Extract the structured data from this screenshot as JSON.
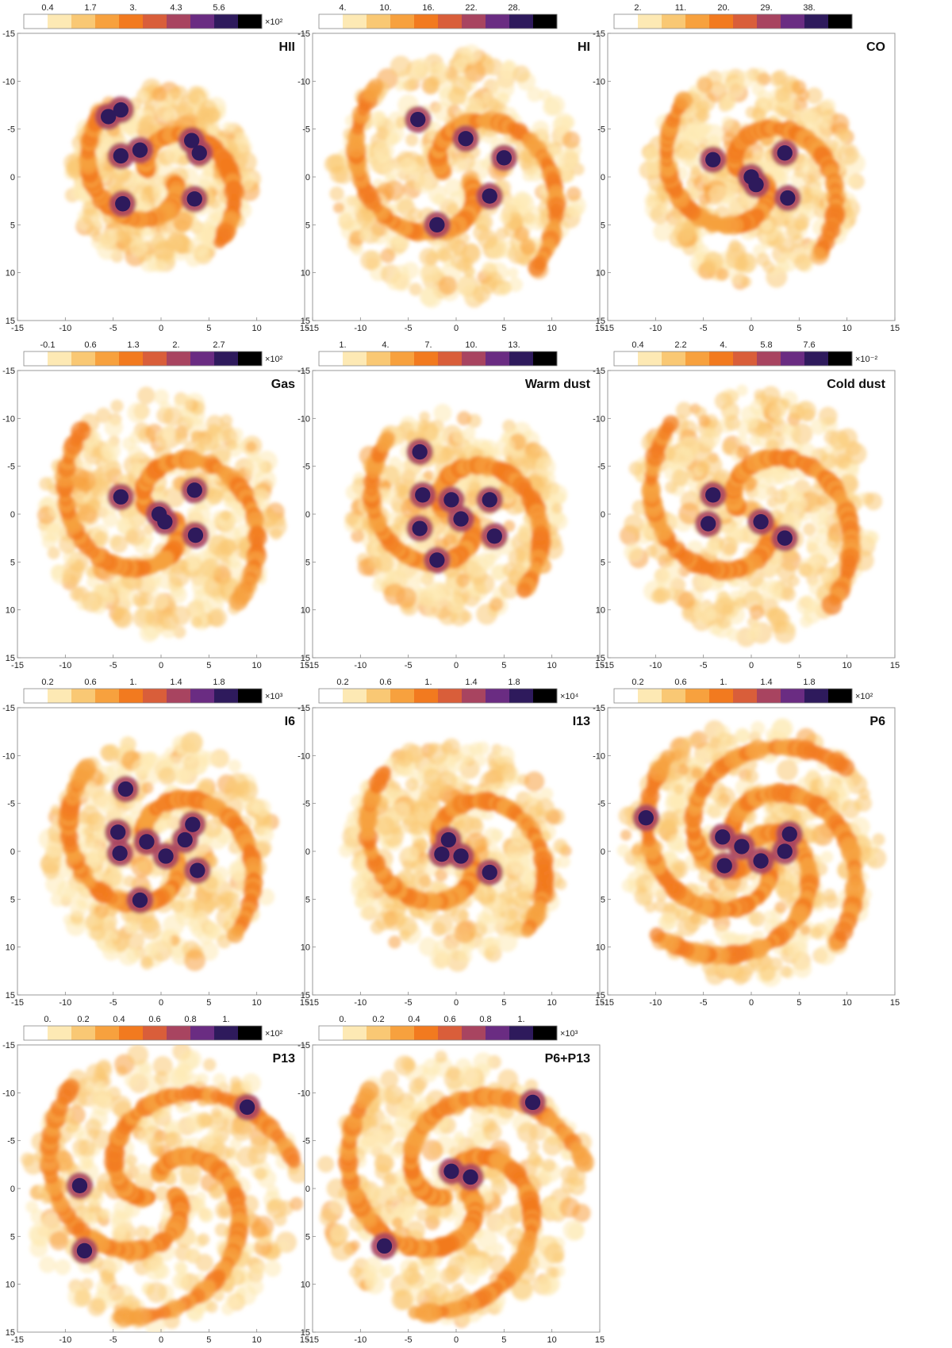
{
  "colors": {
    "colormap": [
      "#ffffff",
      "#fde9b4",
      "#f9c874",
      "#f7a13e",
      "#f27a1f",
      "#d95e3a",
      "#a84460",
      "#6a2c82",
      "#2e1a5c",
      "#000000"
    ],
    "frame": "#999999",
    "panel_bg": "#ffffff"
  },
  "axis_ticks": [
    "-15",
    "-10",
    "-5",
    "0",
    "5",
    "10",
    "15"
  ],
  "chart_data": [
    {
      "type": "heatmap",
      "title": "HII",
      "xlim": [
        -15,
        15
      ],
      "ylim": [
        -15,
        15
      ],
      "colorbar": {
        "ticks": [
          "0.4",
          "1.7",
          "3.",
          "4.3",
          "5.6"
        ],
        "multiplier": "×10²",
        "range": [
          0,
          6.5
        ]
      },
      "ring_radius": 9.5,
      "arms": 2,
      "blobs": [
        [
          -4.2,
          -2.2
        ],
        [
          -2.2,
          -2.8
        ],
        [
          3.2,
          -3.8
        ],
        [
          4.0,
          -2.5
        ],
        [
          3.5,
          2.3
        ],
        [
          -4,
          2.8
        ],
        [
          -5.5,
          -6.3
        ],
        [
          -4.2,
          -7
        ]
      ]
    },
    {
      "type": "heatmap",
      "title": "HI",
      "xlim": [
        -15,
        15
      ],
      "ylim": [
        -15,
        15
      ],
      "colorbar": {
        "ticks": [
          "4.",
          "10.",
          "16.",
          "22.",
          "28."
        ],
        "multiplier": "",
        "range": [
          0,
          30
        ]
      },
      "ring_radius": 13,
      "arms": 2,
      "blobs": [
        [
          -4,
          -6
        ],
        [
          1,
          -4
        ],
        [
          3.5,
          2
        ],
        [
          -2,
          5
        ],
        [
          5,
          -2
        ]
      ]
    },
    {
      "type": "heatmap",
      "title": "CO",
      "xlim": [
        -15,
        15
      ],
      "ylim": [
        -15,
        15
      ],
      "colorbar": {
        "ticks": [
          "2.",
          "11.",
          "20.",
          "29.",
          "38."
        ],
        "multiplier": "",
        "range": [
          0,
          42
        ]
      },
      "ring_radius": 11,
      "arms": 2,
      "blobs": [
        [
          -4.0,
          -1.8
        ],
        [
          0,
          0
        ],
        [
          0.5,
          0.8
        ],
        [
          3.8,
          2.2
        ],
        [
          3.5,
          -2.5
        ]
      ]
    },
    {
      "type": "heatmap",
      "title": "Gas",
      "xlim": [
        -15,
        15
      ],
      "ylim": [
        -15,
        15
      ],
      "colorbar": {
        "ticks": [
          "-0.1",
          "0.6",
          "1.3",
          "2.",
          "2.7"
        ],
        "multiplier": "×10²",
        "range": [
          -0.2,
          3.2
        ]
      },
      "ring_radius": 12.5,
      "arms": 2,
      "blobs": [
        [
          -4.2,
          -1.8
        ],
        [
          -0.2,
          0
        ],
        [
          0.4,
          0.8
        ],
        [
          3.6,
          2.2
        ],
        [
          3.5,
          -2.5
        ]
      ]
    },
    {
      "type": "heatmap",
      "title": "Warm dust",
      "xlim": [
        -15,
        15
      ],
      "ylim": [
        -15,
        15
      ],
      "colorbar": {
        "ticks": [
          "1.",
          "4.",
          "7.",
          "10.",
          "13."
        ],
        "multiplier": "",
        "range": [
          0,
          15
        ]
      },
      "ring_radius": 11,
      "arms": 2,
      "blobs": [
        [
          -3.5,
          -2
        ],
        [
          -0.5,
          -1.5
        ],
        [
          0.5,
          0.5
        ],
        [
          4.0,
          2.3
        ],
        [
          3.5,
          -1.5
        ],
        [
          -3.8,
          1.5
        ],
        [
          -3.8,
          -6.5
        ],
        [
          -2,
          4.8
        ]
      ]
    },
    {
      "type": "heatmap",
      "title": "Cold dust",
      "xlim": [
        -15,
        15
      ],
      "ylim": [
        -15,
        15
      ],
      "colorbar": {
        "ticks": [
          "0.4",
          "2.2",
          "4.",
          "5.8",
          "7.6"
        ],
        "multiplier": "×10⁻²",
        "range": [
          0,
          9
        ]
      },
      "ring_radius": 13,
      "arms": 2,
      "blobs": [
        [
          -4,
          -2
        ],
        [
          1,
          0.8
        ],
        [
          3.5,
          2.5
        ],
        [
          -4.5,
          1
        ]
      ]
    },
    {
      "type": "heatmap",
      "title": "I6",
      "xlim": [
        -15,
        15
      ],
      "ylim": [
        -15,
        15
      ],
      "colorbar": {
        "ticks": [
          "0.2",
          "0.6",
          "1.",
          "1.4",
          "1.8"
        ],
        "multiplier": "×10³",
        "range": [
          0,
          2
        ]
      },
      "ring_radius": 12,
      "arms": 2,
      "blobs": [
        [
          -4.5,
          -2.0
        ],
        [
          -1.5,
          -1
        ],
        [
          0.5,
          0.5
        ],
        [
          3.8,
          2.0
        ],
        [
          2.5,
          -1.2
        ],
        [
          -4.3,
          0.2
        ],
        [
          -3.7,
          -6.5
        ],
        [
          -2.2,
          5.1
        ],
        [
          3.3,
          -2.8
        ]
      ]
    },
    {
      "type": "heatmap",
      "title": "I13",
      "xlim": [
        -15,
        15
      ],
      "ylim": [
        -15,
        15
      ],
      "colorbar": {
        "ticks": [
          "0.2",
          "0.6",
          "1.",
          "1.4",
          "1.8"
        ],
        "multiplier": "×10⁴",
        "range": [
          0,
          2
        ]
      },
      "ring_radius": 11.5,
      "arms": 2,
      "blobs": [
        [
          -0.8,
          -1.2
        ],
        [
          0.5,
          0.5
        ],
        [
          3.5,
          2.2
        ],
        [
          -1.5,
          0.3
        ]
      ]
    },
    {
      "type": "heatmap",
      "title": "P6",
      "xlim": [
        -15,
        15
      ],
      "ylim": [
        -15,
        15
      ],
      "colorbar": {
        "ticks": [
          "0.2",
          "0.6",
          "1.",
          "1.4",
          "1.8"
        ],
        "multiplier": "×10²",
        "range": [
          0,
          2
        ]
      },
      "ring_radius": 13.5,
      "arms": 4,
      "blobs": [
        [
          -3,
          -1.5
        ],
        [
          -1,
          -0.5
        ],
        [
          1,
          1
        ],
        [
          3.5,
          0
        ],
        [
          4,
          -1.8
        ],
        [
          -2.8,
          1.5
        ],
        [
          -11,
          -3.5
        ]
      ]
    },
    {
      "type": "heatmap",
      "title": "P13",
      "xlim": [
        -15,
        15
      ],
      "ylim": [
        -15,
        15
      ],
      "colorbar": {
        "ticks": [
          "0.",
          "0.2",
          "0.4",
          "0.6",
          "0.8",
          "1."
        ],
        "multiplier": "×10²",
        "range": [
          0,
          1.1
        ]
      },
      "ring_radius": 14.5,
      "arms": 3,
      "blobs": [
        [
          9,
          -8.5
        ],
        [
          -8,
          6.5
        ],
        [
          -8.5,
          -0.3
        ]
      ]
    },
    {
      "type": "heatmap",
      "title": "P6+P13",
      "xlim": [
        -15,
        15
      ],
      "ylim": [
        -15,
        15
      ],
      "colorbar": {
        "ticks": [
          "0.",
          "0.2",
          "0.4",
          "0.6",
          "0.8",
          "1."
        ],
        "multiplier": "×10³",
        "range": [
          0,
          1.1
        ]
      },
      "ring_radius": 14,
      "arms": 3,
      "blobs": [
        [
          -0.5,
          -1.8
        ],
        [
          1.5,
          -1.2
        ],
        [
          -7.5,
          6
        ],
        [
          8,
          -9
        ]
      ]
    }
  ]
}
